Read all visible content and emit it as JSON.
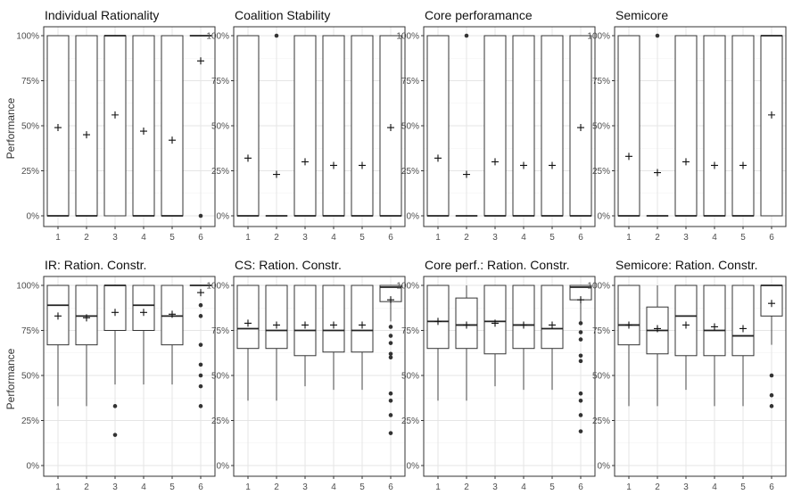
{
  "figure": {
    "ylabel": "Performance",
    "x_ticks": [
      "1",
      "2",
      "3",
      "4",
      "5",
      "6"
    ],
    "y_ticks": [
      "0%",
      "25%",
      "50%",
      "75%",
      "100%"
    ]
  },
  "chart_data": [
    {
      "type": "boxplot",
      "title": "Individual Rationality",
      "ylim": [
        0,
        100
      ],
      "grid": true,
      "categories": [
        "1",
        "2",
        "3",
        "4",
        "5",
        "6"
      ],
      "boxes": [
        {
          "q1": 0,
          "median": 0,
          "q3": 100,
          "low": 0,
          "high": 100,
          "mean": 49,
          "outliers": []
        },
        {
          "q1": 0,
          "median": 0,
          "q3": 100,
          "low": 0,
          "high": 100,
          "mean": 45,
          "outliers": []
        },
        {
          "q1": 0,
          "median": 100,
          "q3": 100,
          "low": 0,
          "high": 100,
          "mean": 56,
          "outliers": []
        },
        {
          "q1": 0,
          "median": 0,
          "q3": 100,
          "low": 0,
          "high": 100,
          "mean": 47,
          "outliers": []
        },
        {
          "q1": 0,
          "median": 0,
          "q3": 100,
          "low": 0,
          "high": 100,
          "mean": 42,
          "outliers": []
        },
        {
          "q1": 100,
          "median": 100,
          "q3": 100,
          "low": 100,
          "high": 100,
          "mean": 86,
          "outliers": [
            0
          ]
        }
      ]
    },
    {
      "type": "boxplot",
      "title": "Coalition Stability",
      "ylim": [
        0,
        100
      ],
      "grid": true,
      "categories": [
        "1",
        "2",
        "3",
        "4",
        "5",
        "6"
      ],
      "boxes": [
        {
          "q1": 0,
          "median": 0,
          "q3": 100,
          "low": 0,
          "high": 100,
          "mean": 32,
          "outliers": []
        },
        {
          "q1": 0,
          "median": 0,
          "q3": 0,
          "low": 0,
          "high": 0,
          "mean": 23,
          "outliers": [
            100
          ]
        },
        {
          "q1": 0,
          "median": 0,
          "q3": 100,
          "low": 0,
          "high": 100,
          "mean": 30,
          "outliers": []
        },
        {
          "q1": 0,
          "median": 0,
          "q3": 100,
          "low": 0,
          "high": 100,
          "mean": 28,
          "outliers": []
        },
        {
          "q1": 0,
          "median": 0,
          "q3": 100,
          "low": 0,
          "high": 100,
          "mean": 28,
          "outliers": []
        },
        {
          "q1": 0,
          "median": 0,
          "q3": 100,
          "low": 0,
          "high": 100,
          "mean": 49,
          "outliers": []
        }
      ]
    },
    {
      "type": "boxplot",
      "title": "Core perforamance",
      "ylim": [
        0,
        100
      ],
      "grid": true,
      "categories": [
        "1",
        "2",
        "3",
        "4",
        "5",
        "6"
      ],
      "boxes": [
        {
          "q1": 0,
          "median": 0,
          "q3": 100,
          "low": 0,
          "high": 100,
          "mean": 32,
          "outliers": []
        },
        {
          "q1": 0,
          "median": 0,
          "q3": 0,
          "low": 0,
          "high": 0,
          "mean": 23,
          "outliers": [
            100
          ]
        },
        {
          "q1": 0,
          "median": 0,
          "q3": 100,
          "low": 0,
          "high": 100,
          "mean": 30,
          "outliers": []
        },
        {
          "q1": 0,
          "median": 0,
          "q3": 100,
          "low": 0,
          "high": 100,
          "mean": 28,
          "outliers": []
        },
        {
          "q1": 0,
          "median": 0,
          "q3": 100,
          "low": 0,
          "high": 100,
          "mean": 28,
          "outliers": []
        },
        {
          "q1": 0,
          "median": 0,
          "q3": 100,
          "low": 0,
          "high": 100,
          "mean": 49,
          "outliers": []
        }
      ]
    },
    {
      "type": "boxplot",
      "title": "Semicore",
      "ylim": [
        0,
        100
      ],
      "grid": true,
      "categories": [
        "1",
        "2",
        "3",
        "4",
        "5",
        "6"
      ],
      "boxes": [
        {
          "q1": 0,
          "median": 0,
          "q3": 100,
          "low": 0,
          "high": 100,
          "mean": 33,
          "outliers": []
        },
        {
          "q1": 0,
          "median": 0,
          "q3": 0,
          "low": 0,
          "high": 0,
          "mean": 24,
          "outliers": [
            100
          ]
        },
        {
          "q1": 0,
          "median": 0,
          "q3": 100,
          "low": 0,
          "high": 100,
          "mean": 30,
          "outliers": []
        },
        {
          "q1": 0,
          "median": 0,
          "q3": 100,
          "low": 0,
          "high": 100,
          "mean": 28,
          "outliers": []
        },
        {
          "q1": 0,
          "median": 0,
          "q3": 100,
          "low": 0,
          "high": 100,
          "mean": 28,
          "outliers": []
        },
        {
          "q1": 0,
          "median": 100,
          "q3": 100,
          "low": 0,
          "high": 100,
          "mean": 56,
          "outliers": []
        }
      ]
    },
    {
      "type": "boxplot",
      "title": "IR: Ration. Constr.",
      "ylim": [
        0,
        100
      ],
      "grid": true,
      "categories": [
        "1",
        "2",
        "3",
        "4",
        "5",
        "6"
      ],
      "boxes": [
        {
          "q1": 67,
          "median": 89,
          "q3": 100,
          "low": 33,
          "high": 100,
          "mean": 83,
          "outliers": []
        },
        {
          "q1": 67,
          "median": 83,
          "q3": 100,
          "low": 33,
          "high": 100,
          "mean": 82,
          "outliers": []
        },
        {
          "q1": 75,
          "median": 100,
          "q3": 100,
          "low": 45,
          "high": 100,
          "mean": 85,
          "outliers": [
            33,
            17
          ]
        },
        {
          "q1": 75,
          "median": 89,
          "q3": 100,
          "low": 45,
          "high": 100,
          "mean": 85,
          "outliers": []
        },
        {
          "q1": 67,
          "median": 83,
          "q3": 100,
          "low": 45,
          "high": 100,
          "mean": 84,
          "outliers": []
        },
        {
          "q1": 100,
          "median": 100,
          "q3": 100,
          "low": 100,
          "high": 100,
          "mean": 96,
          "outliers": [
            89,
            83,
            67,
            56,
            50,
            44,
            33
          ]
        }
      ]
    },
    {
      "type": "boxplot",
      "title": "CS: Ration. Constr.",
      "ylim": [
        0,
        100
      ],
      "grid": true,
      "categories": [
        "1",
        "2",
        "3",
        "4",
        "5",
        "6"
      ],
      "boxes": [
        {
          "q1": 65,
          "median": 76,
          "q3": 100,
          "low": 36,
          "high": 100,
          "mean": 79,
          "outliers": []
        },
        {
          "q1": 65,
          "median": 75,
          "q3": 100,
          "low": 36,
          "high": 100,
          "mean": 78,
          "outliers": []
        },
        {
          "q1": 61,
          "median": 75,
          "q3": 100,
          "low": 44,
          "high": 100,
          "mean": 78,
          "outliers": []
        },
        {
          "q1": 63,
          "median": 75,
          "q3": 100,
          "low": 42,
          "high": 100,
          "mean": 78,
          "outliers": []
        },
        {
          "q1": 63,
          "median": 75,
          "q3": 100,
          "low": 42,
          "high": 100,
          "mean": 78,
          "outliers": []
        },
        {
          "q1": 91,
          "median": 99,
          "q3": 100,
          "low": 80,
          "high": 100,
          "mean": 92,
          "outliers": [
            77,
            72,
            68,
            62,
            60,
            40,
            36,
            28,
            18
          ]
        }
      ]
    },
    {
      "type": "boxplot",
      "title": "Core perf.: Ration. Constr.",
      "ylim": [
        0,
        100
      ],
      "grid": true,
      "categories": [
        "1",
        "2",
        "3",
        "4",
        "5",
        "6"
      ],
      "boxes": [
        {
          "q1": 65,
          "median": 80,
          "q3": 100,
          "low": 36,
          "high": 100,
          "mean": 80,
          "outliers": []
        },
        {
          "q1": 65,
          "median": 78,
          "q3": 93,
          "low": 36,
          "high": 100,
          "mean": 78,
          "outliers": []
        },
        {
          "q1": 62,
          "median": 80,
          "q3": 100,
          "low": 44,
          "high": 100,
          "mean": 79,
          "outliers": []
        },
        {
          "q1": 65,
          "median": 78,
          "q3": 100,
          "low": 42,
          "high": 100,
          "mean": 78,
          "outliers": []
        },
        {
          "q1": 65,
          "median": 76,
          "q3": 100,
          "low": 42,
          "high": 100,
          "mean": 78,
          "outliers": []
        },
        {
          "q1": 92,
          "median": 99,
          "q3": 100,
          "low": 80,
          "high": 100,
          "mean": 92,
          "outliers": [
            79,
            74,
            70,
            61,
            58,
            40,
            36,
            28,
            19
          ]
        }
      ]
    },
    {
      "type": "boxplot",
      "title": "Semicore: Ration. Constr.",
      "ylim": [
        0,
        100
      ],
      "grid": true,
      "categories": [
        "1",
        "2",
        "3",
        "4",
        "5",
        "6"
      ],
      "boxes": [
        {
          "q1": 67,
          "median": 78,
          "q3": 100,
          "low": 33,
          "high": 100,
          "mean": 78,
          "outliers": []
        },
        {
          "q1": 62,
          "median": 75,
          "q3": 88,
          "low": 33,
          "high": 100,
          "mean": 76,
          "outliers": []
        },
        {
          "q1": 61,
          "median": 83,
          "q3": 100,
          "low": 42,
          "high": 100,
          "mean": 78,
          "outliers": []
        },
        {
          "q1": 61,
          "median": 75,
          "q3": 100,
          "low": 33,
          "high": 100,
          "mean": 77,
          "outliers": []
        },
        {
          "q1": 61,
          "median": 72,
          "q3": 100,
          "low": 33,
          "high": 100,
          "mean": 76,
          "outliers": []
        },
        {
          "q1": 83,
          "median": 100,
          "q3": 100,
          "low": 67,
          "high": 100,
          "mean": 90,
          "outliers": [
            50,
            39,
            33
          ]
        }
      ]
    }
  ]
}
